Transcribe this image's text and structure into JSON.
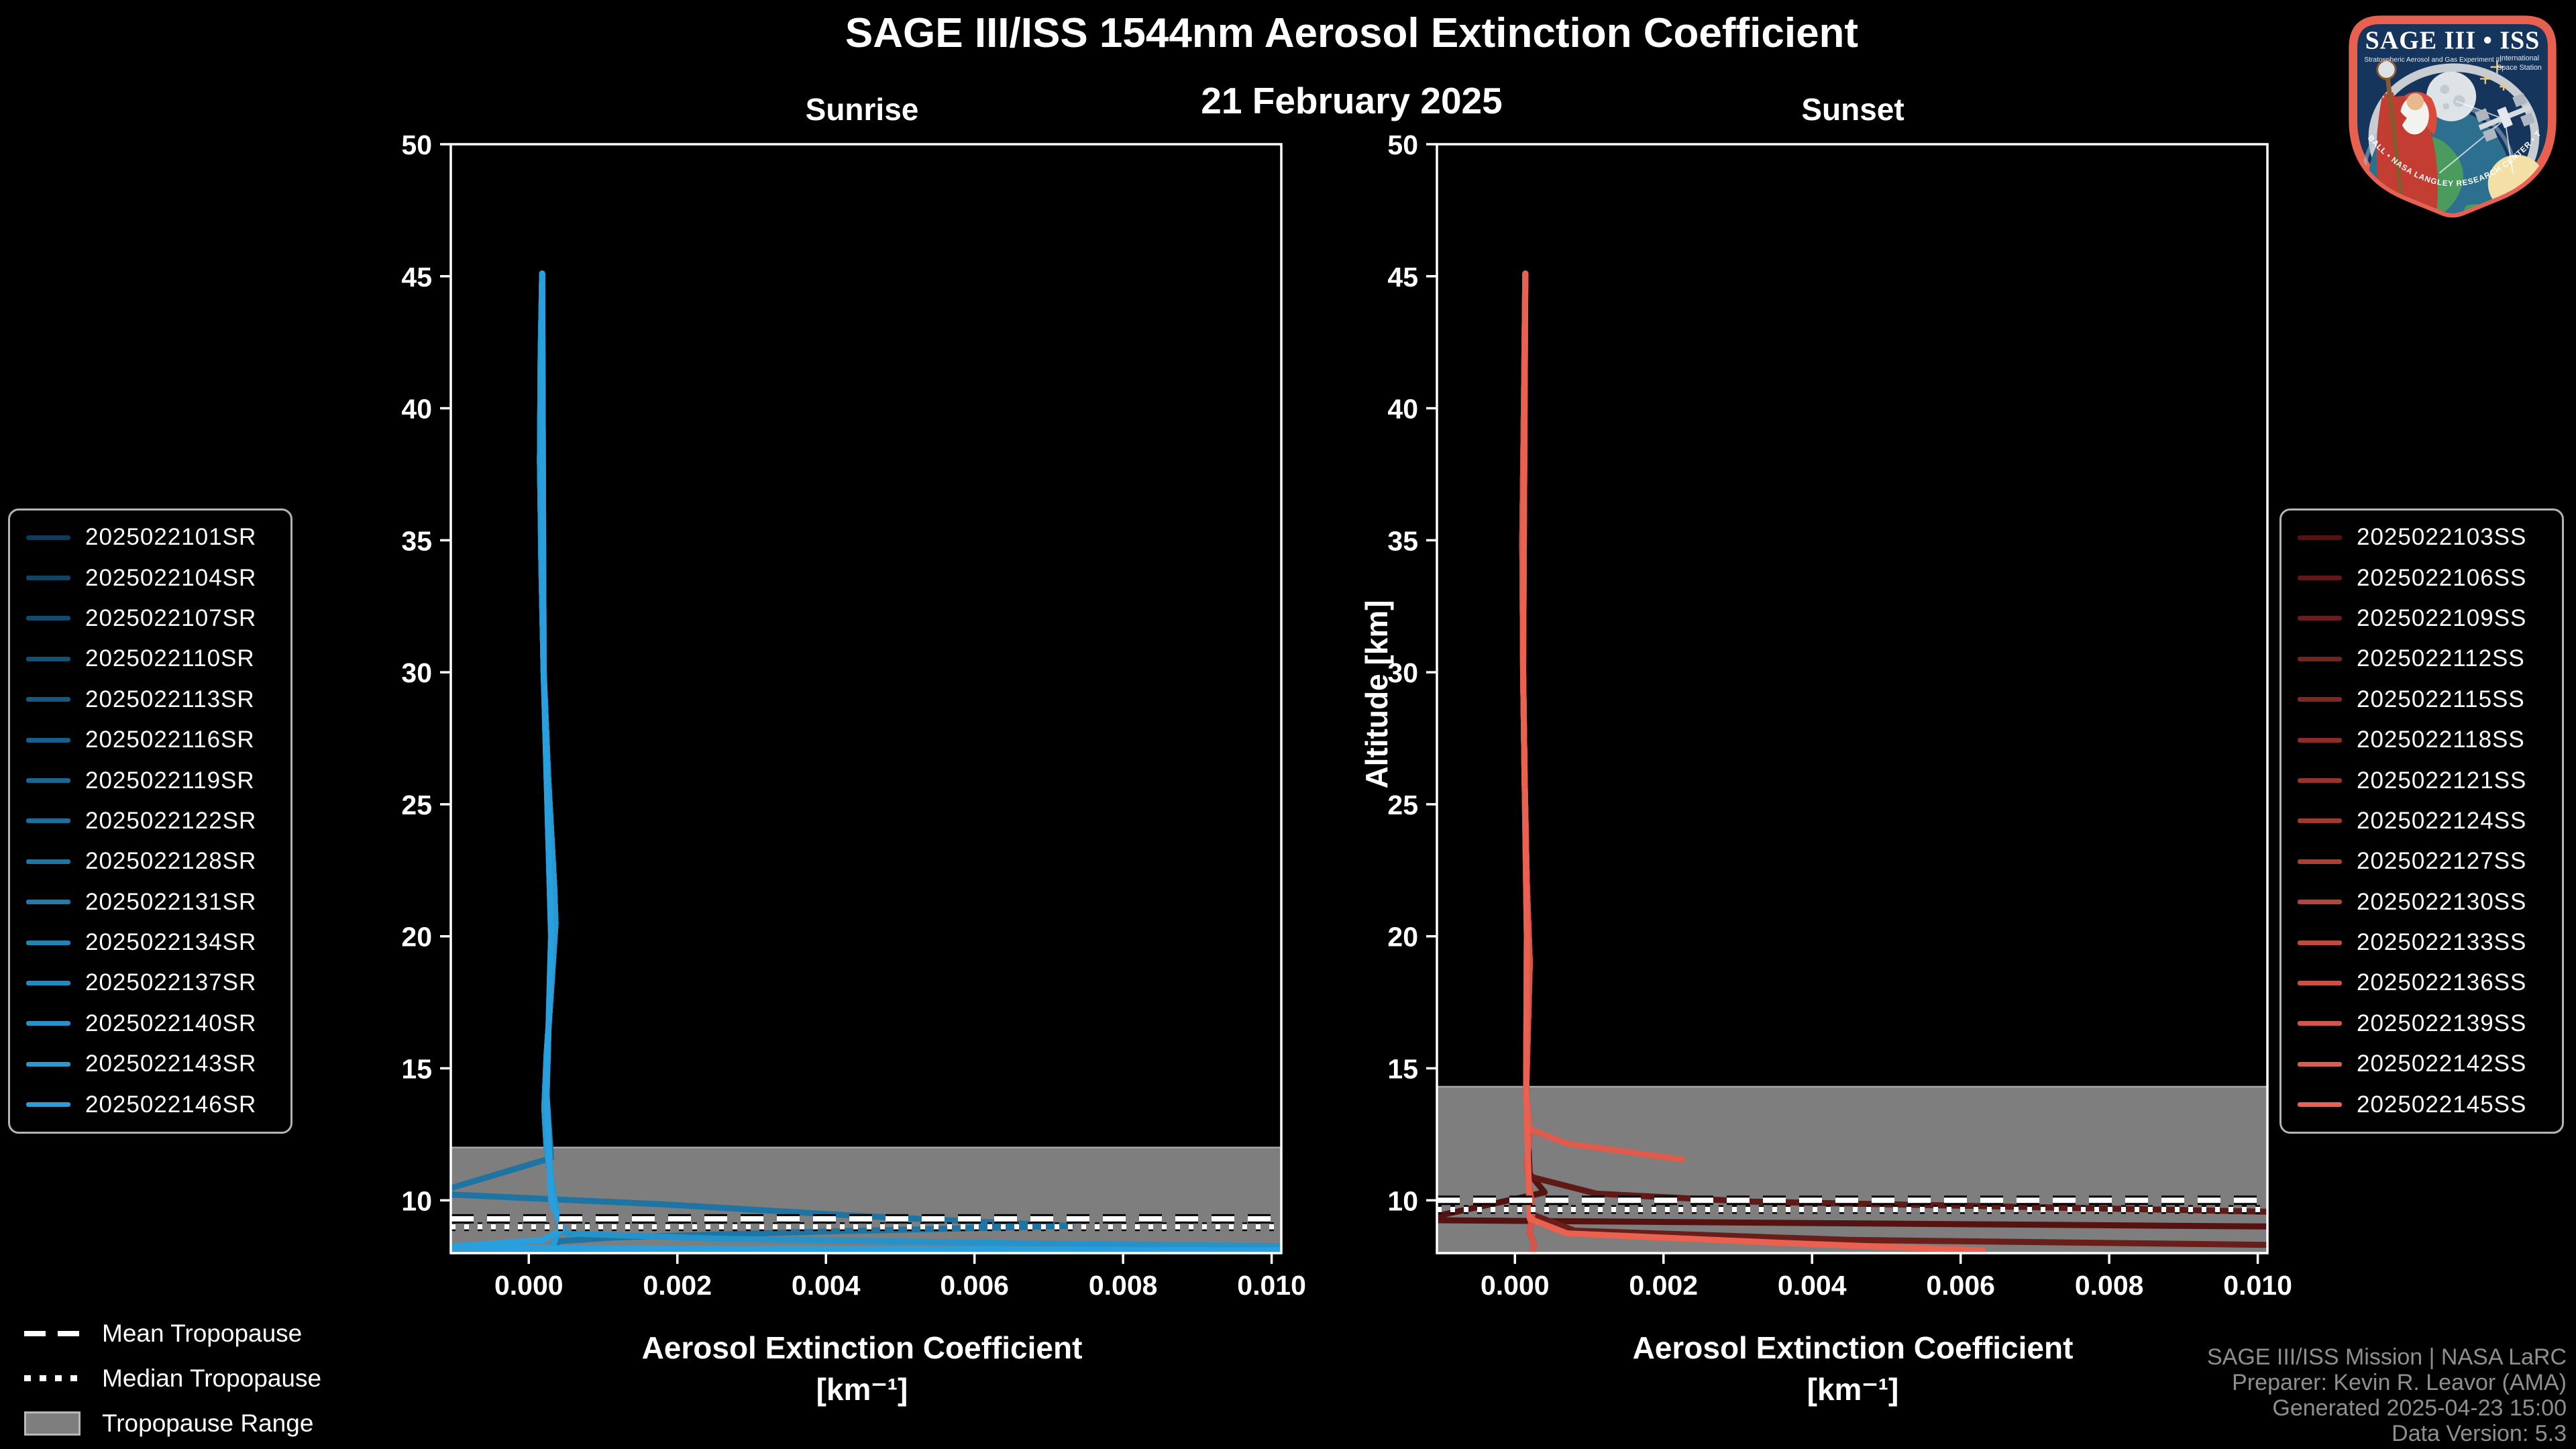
{
  "header": {
    "title": "SAGE III/ISS 1544nm Aerosol Extinction Coefficient",
    "date": "21 February 2025"
  },
  "tropopause_legend": {
    "mean": "Mean Tropopause",
    "median": "Median Tropopause",
    "range": "Tropopause Range"
  },
  "attribution": {
    "lines": [
      "SAGE III/ISS Mission | NASA LaRC",
      "Preparer: Kevin R. Leavor (AMA)",
      "Generated 2025-04-23 15:00",
      "Data Version: 5.3"
    ]
  },
  "patch": {
    "title": "SAGE III • ISS",
    "subtitle_left": "Stratospheric Aerosol and Gas Experiment III",
    "subtitle_right_line1": "International",
    "subtitle_right_line2": "Space Station",
    "ring_text": "BALL • NASA LANGLEY RESEARCH CENTER • TAS-I • ESA"
  },
  "colors": {
    "background": "#000000",
    "axis": "#ffffff",
    "tropopause_band": "#7e7e7e",
    "band_edge": "#a8a8a8",
    "tropopause_line": "#ffffff",
    "tropopause_underlay": "#000000",
    "attribution_text": "#8f8f8f",
    "legend_border": "#b4b4b4"
  },
  "chart_data": [
    {
      "type": "line",
      "title": "Sunrise",
      "ylabel": "Altitude [km]",
      "xlabel": "Aerosol Extinction Coefficient",
      "xlabel_units": "[km⁻¹]",
      "xlim": [
        -0.00105,
        0.01013
      ],
      "ylim": [
        8,
        50
      ],
      "grid": false,
      "legend_position": "outside-left",
      "x_ticks": {
        "values": [
          0.0,
          0.002,
          0.004,
          0.006,
          0.008,
          0.01
        ],
        "labels": [
          "0.000",
          "0.002",
          "0.004",
          "0.006",
          "0.008",
          "0.010"
        ]
      },
      "y_ticks": {
        "values": [
          10,
          15,
          20,
          25,
          30,
          35,
          40,
          45,
          50
        ],
        "labels": [
          "10",
          "15",
          "20",
          "25",
          "30",
          "35",
          "40",
          "45",
          "50"
        ]
      },
      "tropopause": {
        "mean_km": 9.3,
        "median_km": 9.0,
        "range_top_km": 12.0,
        "range_bottom_km": 8.0
      },
      "base_profile": [
        [
          0.00018,
          45.1
        ],
        [
          0.00016,
          42
        ],
        [
          0.00015,
          38
        ],
        [
          0.00017,
          34
        ],
        [
          0.0002,
          30
        ],
        [
          0.00026,
          26
        ],
        [
          0.00034,
          22
        ],
        [
          0.00036,
          20.5
        ],
        [
          0.0003,
          18
        ],
        [
          0.00024,
          15.5
        ],
        [
          0.00021,
          13.5
        ],
        [
          0.00024,
          12
        ],
        [
          0.0003,
          10.8
        ],
        [
          0.00036,
          9.8
        ],
        [
          0.00042,
          9.0
        ],
        [
          0.00034,
          8.4
        ],
        [
          0.00032,
          8.0
        ]
      ],
      "series": [
        {
          "name": "2025022101SR",
          "color": "#103C59"
        },
        {
          "name": "2025022104SR",
          "color": "#124362"
        },
        {
          "name": "2025022107SR",
          "color": "#144A6C"
        },
        {
          "name": "2025022110SR",
          "color": "#155175"
        },
        {
          "name": "2025022113SR",
          "color": "#17597F"
        },
        {
          "name": "2025022116SR",
          "color": "#196088"
        },
        {
          "name": "2025022119SR",
          "color": "#1B6791"
        },
        {
          "name": "2025022122SR",
          "color": "#1D6E9B"
        },
        {
          "name": "2025022128SR",
          "color": "#1E75A4",
          "points": [
            [
              0.00018,
              45.1
            ],
            [
              0.0002,
              30
            ],
            [
              0.0003,
              20
            ],
            [
              0.00024,
              14
            ],
            [
              0.0003,
              11.6
            ],
            [
              -0.0013,
              10.25
            ],
            [
              0.0018,
              9.85
            ],
            [
              0.0045,
              9.4
            ],
            [
              0.0073,
              9.03
            ],
            [
              0.004,
              8.82
            ],
            [
              0.0012,
              8.6
            ],
            [
              0.0004,
              8.45
            ],
            [
              0.0003,
              8.0
            ]
          ]
        },
        {
          "name": "2025022131SR",
          "color": "#207CAE"
        },
        {
          "name": "2025022134SR",
          "color": "#2283B7"
        },
        {
          "name": "2025022137SR",
          "color": "#248BC1"
        },
        {
          "name": "2025022140SR",
          "color": "#2692CA",
          "points": [
            [
              0.00018,
              45.1
            ],
            [
              0.0002,
              30
            ],
            [
              0.0003,
              20
            ],
            [
              0.00024,
              14
            ],
            [
              0.0003,
              10.5
            ],
            [
              0.0004,
              9.2
            ],
            [
              0.0005,
              8.75
            ],
            [
              0.0025,
              8.55
            ],
            [
              0.006,
              8.4
            ],
            [
              0.0105,
              8.25
            ]
          ]
        },
        {
          "name": "2025022143SR",
          "color": "#2799D3"
        },
        {
          "name": "2025022146SR",
          "color": "#29A0DD",
          "points": [
            [
              0.00018,
              45.1
            ],
            [
              0.0002,
              30
            ],
            [
              0.0003,
              20
            ],
            [
              0.00024,
              14
            ],
            [
              0.0003,
              10.0
            ],
            [
              0.00045,
              8.9
            ],
            [
              0.0002,
              8.5
            ],
            [
              -0.0013,
              8.2
            ],
            [
              0.0105,
              8.1
            ]
          ]
        }
      ]
    },
    {
      "type": "line",
      "title": "Sunset",
      "ylabel": "Altitude [km]",
      "xlabel": "Aerosol Extinction Coefficient",
      "xlabel_units": "[km⁻¹]",
      "xlim": [
        -0.00105,
        0.01013
      ],
      "ylim": [
        8,
        50
      ],
      "grid": false,
      "legend_position": "outside-right",
      "x_ticks": {
        "values": [
          0.0,
          0.002,
          0.004,
          0.006,
          0.008,
          0.01
        ],
        "labels": [
          "0.000",
          "0.002",
          "0.004",
          "0.006",
          "0.008",
          "0.010"
        ]
      },
      "y_ticks": {
        "values": [
          10,
          15,
          20,
          25,
          30,
          35,
          40,
          45,
          50
        ],
        "labels": [
          "10",
          "15",
          "20",
          "25",
          "30",
          "35",
          "40",
          "45",
          "50"
        ]
      },
      "tropopause": {
        "mean_km": 10.0,
        "median_km": 9.65,
        "range_top_km": 14.3,
        "range_bottom_km": 8.0
      },
      "base_profile": [
        [
          0.00014,
          45.1
        ],
        [
          0.00012,
          40
        ],
        [
          0.0001,
          35
        ],
        [
          0.00011,
          30
        ],
        [
          0.00013,
          26
        ],
        [
          0.00016,
          22
        ],
        [
          0.0002,
          19
        ],
        [
          0.00017,
          16
        ],
        [
          0.00015,
          14
        ],
        [
          0.0002,
          12.6
        ],
        [
          0.00016,
          11.4
        ],
        [
          0.0002,
          10.4
        ],
        [
          0.00024,
          9.6
        ],
        [
          0.0002,
          8.8
        ],
        [
          0.00026,
          8.3
        ],
        [
          0.00022,
          8.0
        ]
      ],
      "series": [
        {
          "name": "2025022103SS",
          "color": "#541311",
          "points": [
            [
              0.00014,
              45.1
            ],
            [
              0.00011,
              30
            ],
            [
              0.00016,
              20
            ],
            [
              0.00015,
              14
            ],
            [
              0.0002,
              11.0
            ],
            [
              0.0004,
              10.3
            ],
            [
              -0.0013,
              9.25
            ],
            [
              0.0105,
              9.0
            ]
          ]
        },
        {
          "name": "2025022106SS",
          "color": "#5F1916",
          "points": [
            [
              0.00014,
              45.1
            ],
            [
              0.00011,
              30
            ],
            [
              0.00016,
              20
            ],
            [
              0.00015,
              14
            ],
            [
              0.0002,
              10.9
            ],
            [
              0.0011,
              10.25
            ],
            [
              0.0032,
              9.95
            ],
            [
              0.0105,
              9.55
            ]
          ]
        },
        {
          "name": "2025022109SS",
          "color": "#691E1A",
          "points": [
            [
              0.00014,
              45.1
            ],
            [
              0.00011,
              30
            ],
            [
              0.00016,
              20
            ],
            [
              0.00015,
              14
            ],
            [
              0.0002,
              9.5
            ],
            [
              0.0008,
              8.85
            ],
            [
              0.0045,
              8.5
            ],
            [
              0.0105,
              8.3
            ]
          ]
        },
        {
          "name": "2025022112SS",
          "color": "#74241F"
        },
        {
          "name": "2025022115SS",
          "color": "#7F2923"
        },
        {
          "name": "2025022118SS",
          "color": "#8A2F28"
        },
        {
          "name": "2025022121SS",
          "color": "#94342C"
        },
        {
          "name": "2025022124SS",
          "color": "#9F3A31"
        },
        {
          "name": "2025022127SS",
          "color": "#AA4035"
        },
        {
          "name": "2025022130SS",
          "color": "#B4453A"
        },
        {
          "name": "2025022133SS",
          "color": "#BF4B3E"
        },
        {
          "name": "2025022136SS",
          "color": "#CA5043"
        },
        {
          "name": "2025022139SS",
          "color": "#D55647"
        },
        {
          "name": "2025022142SS",
          "color": "#DF5B4C",
          "points": [
            [
              0.00014,
              45.1
            ],
            [
              0.00011,
              30
            ],
            [
              0.00016,
              20
            ],
            [
              0.00015,
              14
            ],
            [
              0.0002,
              12.7
            ],
            [
              0.0007,
              12.15
            ],
            [
              0.00225,
              11.55
            ]
          ]
        },
        {
          "name": "2025022145SS",
          "color": "#EA6150",
          "points": [
            [
              0.00014,
              45.1
            ],
            [
              0.00011,
              30
            ],
            [
              0.00016,
              20
            ],
            [
              0.00015,
              14
            ],
            [
              0.0002,
              9.3
            ],
            [
              0.0007,
              8.75
            ],
            [
              0.0035,
              8.4
            ],
            [
              0.0063,
              8.1
            ]
          ]
        }
      ]
    }
  ]
}
